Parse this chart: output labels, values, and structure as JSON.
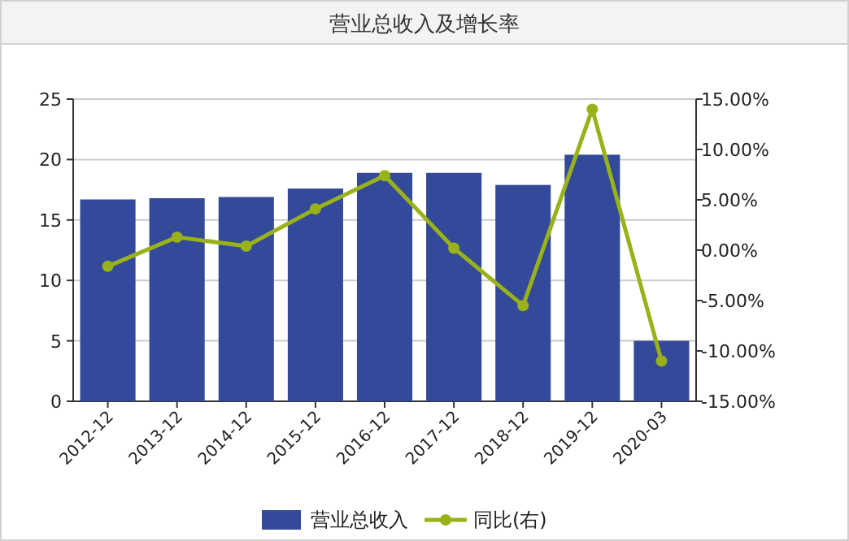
{
  "chart_data": {
    "type": "bar",
    "title": "营业总收入及增长率",
    "categories": [
      "2012-12",
      "2013-12",
      "2014-12",
      "2015-12",
      "2016-12",
      "2017-12",
      "2018-12",
      "2019-12",
      "2020-03"
    ],
    "series": [
      {
        "name": "营业总收入",
        "color": "#33499a",
        "values": [
          16.7,
          16.8,
          16.9,
          17.6,
          18.9,
          18.9,
          17.9,
          20.4,
          5.0
        ]
      },
      {
        "name": "同比(右)",
        "type": "line",
        "axis": "y2",
        "color": "#99b21a",
        "marker": "circle",
        "values": [
          -1.6,
          1.3,
          0.4,
          4.1,
          7.4,
          0.2,
          -5.5,
          14.0,
          -11.0
        ]
      }
    ],
    "ylim": [
      0,
      25
    ],
    "yticks": [
      0,
      5,
      10,
      15,
      20,
      25
    ],
    "y2lim": [
      -15,
      15
    ],
    "y2ticks": [
      {
        "value": -15,
        "label": "-15.00%"
      },
      {
        "value": -10,
        "label": "-10.00%"
      },
      {
        "value": -5,
        "label": "-5.00%"
      },
      {
        "value": 0,
        "label": "0.00%"
      },
      {
        "value": 5,
        "label": "5.00%"
      },
      {
        "value": 10,
        "label": "10.00%"
      },
      {
        "value": 15,
        "label": "15.00%"
      }
    ],
    "grid": "y",
    "legend": "bottom"
  }
}
